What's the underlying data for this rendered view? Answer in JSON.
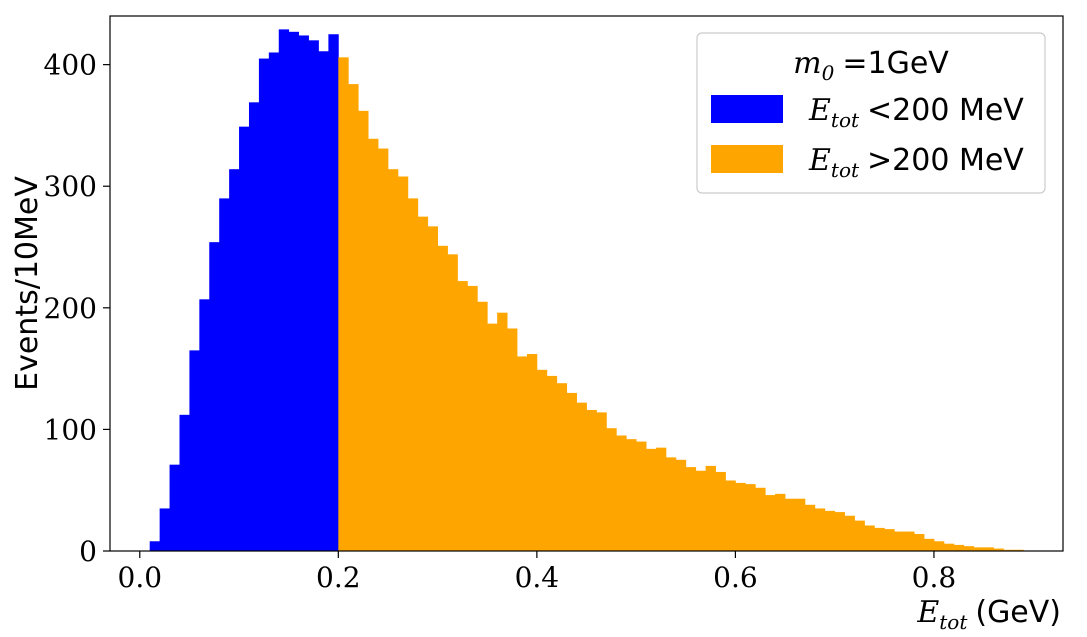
{
  "chart_data": {
    "type": "bar",
    "histogram": true,
    "bin_width": 0.01,
    "x_start": 0.0,
    "xlim": [
      -0.03,
      0.93
    ],
    "ylim": [
      0,
      440
    ],
    "x_ticks": [
      0.0,
      0.2,
      0.4,
      0.6,
      0.8
    ],
    "x_tick_labels": [
      "0.0",
      "0.2",
      "0.4",
      "0.6",
      "0.8"
    ],
    "y_ticks": [
      0,
      100,
      200,
      300,
      400
    ],
    "y_tick_labels": [
      "0",
      "100",
      "200",
      "300",
      "400"
    ],
    "ylabel": "Events/10MeV",
    "xlabel": {
      "var": "E",
      "sub": "tot",
      "unit": "(GeV)"
    },
    "grid": false,
    "legend": {
      "placement": "top-right",
      "title": {
        "var": "m",
        "sub": "0",
        "rest": "=1GeV"
      }
    },
    "series": [
      {
        "legend": {
          "var": "E",
          "sub": "tot",
          "rest": "<200 MeV"
        },
        "color": "#0000ff",
        "values": [
          0,
          8,
          35,
          71,
          112,
          165,
          207,
          254,
          290,
          314,
          349,
          369,
          405,
          410,
          429,
          427,
          424,
          420,
          411,
          425
        ]
      },
      {
        "legend": {
          "var": "E",
          "sub": "tot",
          "rest": ">200 MeV"
        },
        "color": "#ffa500",
        "values": [
          406,
          384,
          362,
          339,
          331,
          314,
          308,
          290,
          275,
          267,
          251,
          244,
          222,
          218,
          205,
          187,
          196,
          183,
          160,
          162,
          149,
          144,
          138,
          130,
          122,
          116,
          114,
          101,
          95,
          92,
          90,
          84,
          85,
          77,
          75,
          69,
          66,
          70,
          65,
          58,
          56,
          55,
          52,
          46,
          47,
          43,
          43,
          38,
          35,
          33,
          32,
          29,
          25,
          21,
          19,
          18,
          16,
          16,
          14,
          10,
          8,
          6,
          5,
          4,
          3,
          3,
          2,
          1,
          1,
          0
        ]
      }
    ]
  }
}
